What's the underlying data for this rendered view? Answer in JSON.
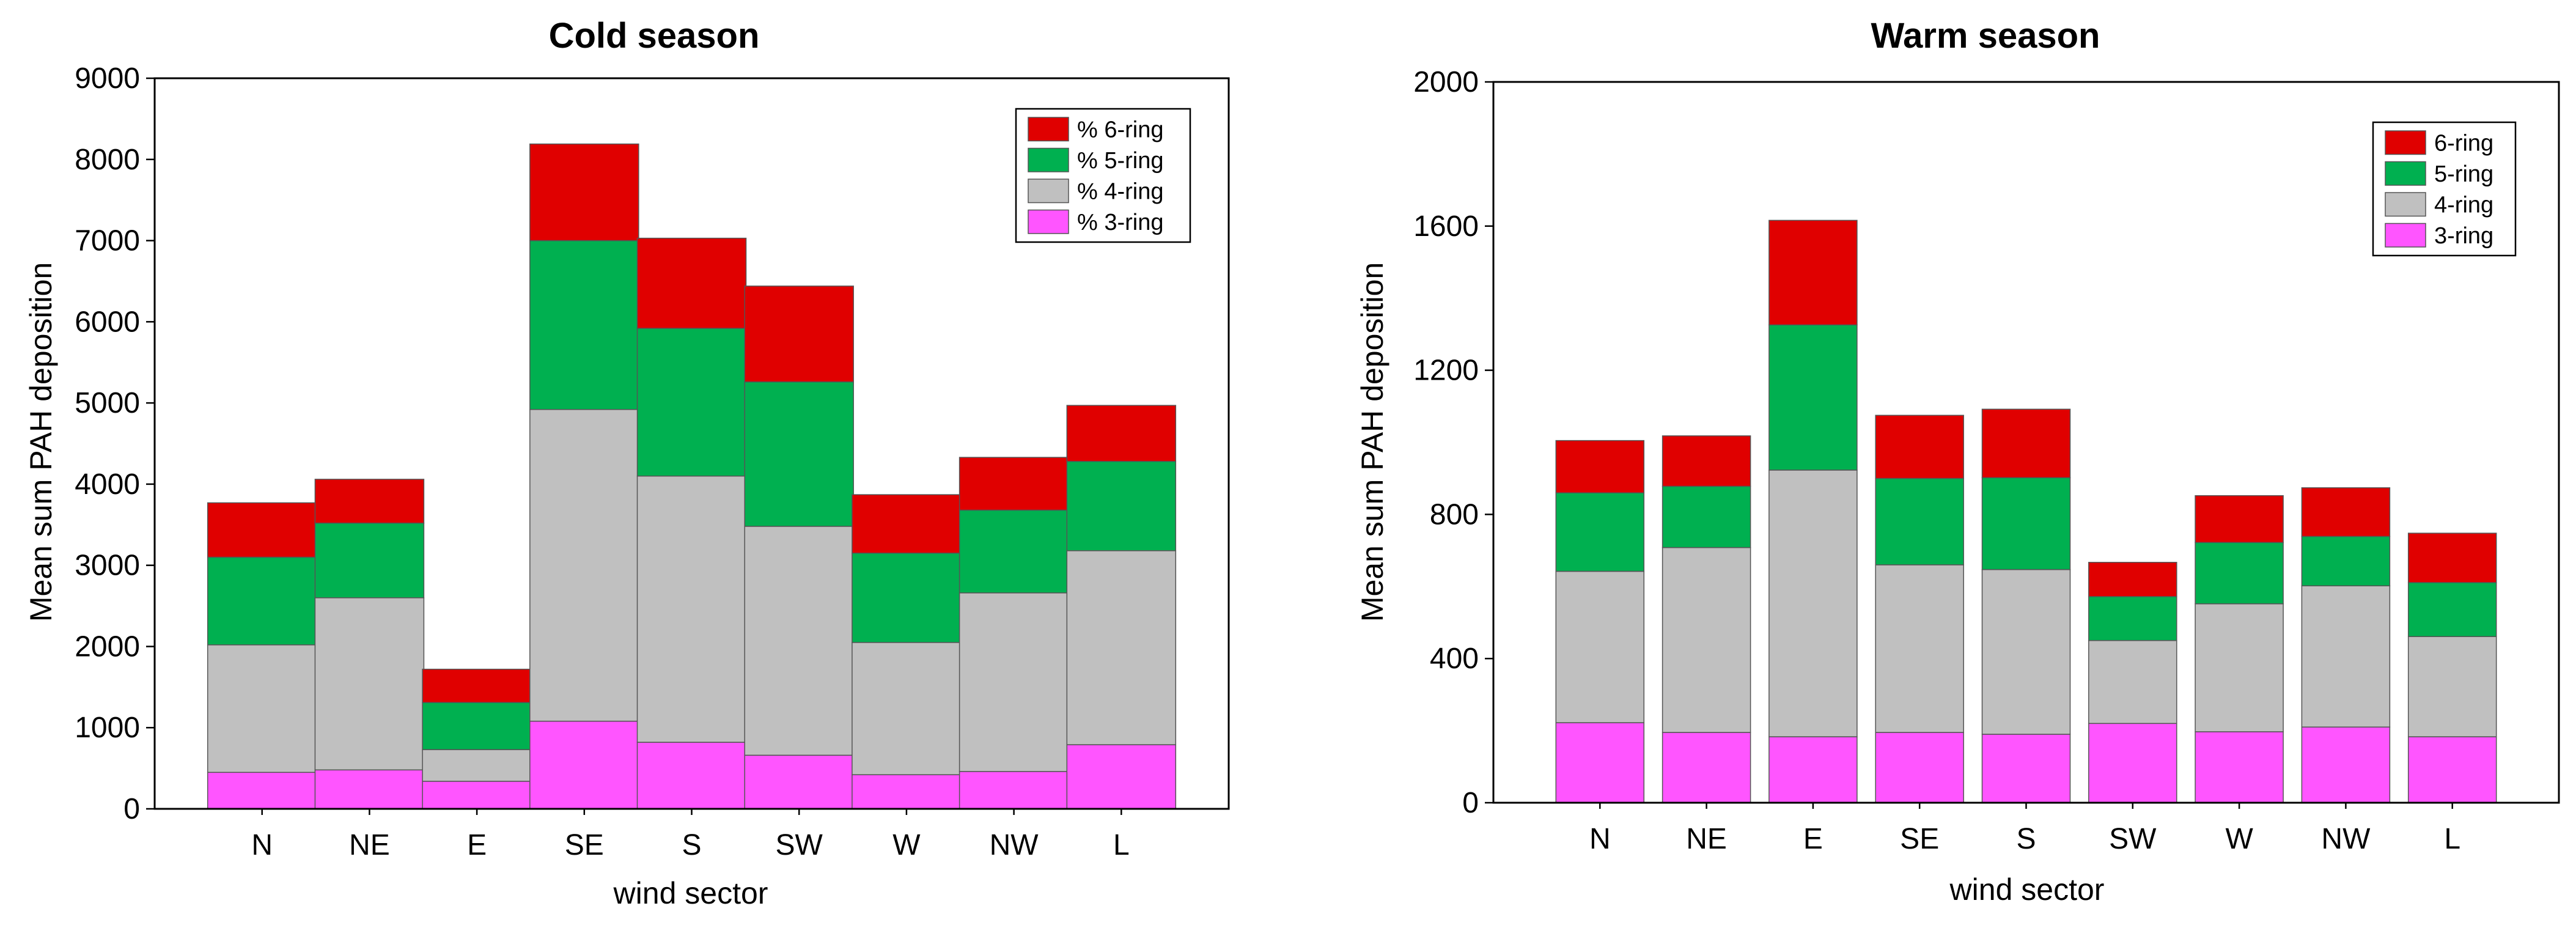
{
  "colors": {
    "ring6": "#e00000",
    "ring5": "#00b050",
    "ring4": "#c0c0c0",
    "ring3": "#ff55ff",
    "border": "#000000"
  },
  "chart_data": [
    {
      "type": "bar",
      "stacked": true,
      "title": "Cold season",
      "xlabel": "wind sector",
      "ylabel": "Mean sum PAH deposition",
      "ylim": [
        0,
        9000
      ],
      "yticks": [
        0,
        1000,
        2000,
        3000,
        4000,
        5000,
        6000,
        7000,
        8000,
        9000
      ],
      "grid": false,
      "legend_position": "top-right",
      "categories": [
        "N",
        "NE",
        "E",
        "SE",
        "S",
        "SW",
        "W",
        "NW",
        "L"
      ],
      "series": [
        {
          "name": "% 3-ring",
          "key": "ring3",
          "values": [
            450,
            480,
            340,
            1080,
            820,
            660,
            420,
            460,
            790
          ]
        },
        {
          "name": "% 4-ring",
          "key": "ring4",
          "values": [
            1570,
            2120,
            390,
            3840,
            3280,
            2820,
            1630,
            2200,
            2390
          ]
        },
        {
          "name": "% 5-ring",
          "key": "ring5",
          "values": [
            1080,
            920,
            580,
            2080,
            1820,
            1780,
            1100,
            1020,
            1100
          ]
        },
        {
          "name": "% 6-ring",
          "key": "ring6",
          "values": [
            670,
            540,
            410,
            1190,
            1110,
            1180,
            720,
            650,
            690
          ]
        }
      ]
    },
    {
      "type": "bar",
      "stacked": true,
      "title": "Warm season",
      "xlabel": "wind sector",
      "ylabel": "Mean sum PAH deposition",
      "ylim": [
        0,
        2000
      ],
      "yticks": [
        0,
        400,
        800,
        1200,
        1600,
        2000
      ],
      "grid": false,
      "legend_position": "top-right",
      "categories": [
        "N",
        "NE",
        "E",
        "SE",
        "S",
        "SW",
        "W",
        "NW",
        "L"
      ],
      "series": [
        {
          "name": "3-ring",
          "key": "ring3",
          "values": [
            222,
            195,
            183,
            195,
            190,
            220,
            197,
            210,
            183
          ]
        },
        {
          "name": "4-ring",
          "key": "ring4",
          "values": [
            420,
            513,
            740,
            465,
            457,
            230,
            355,
            392,
            278
          ]
        },
        {
          "name": "5-ring",
          "key": "ring5",
          "values": [
            218,
            170,
            403,
            240,
            255,
            122,
            170,
            137,
            150
          ]
        },
        {
          "name": "6-ring",
          "key": "ring6",
          "values": [
            145,
            140,
            290,
            175,
            190,
            95,
            130,
            135,
            137
          ]
        }
      ]
    }
  ]
}
